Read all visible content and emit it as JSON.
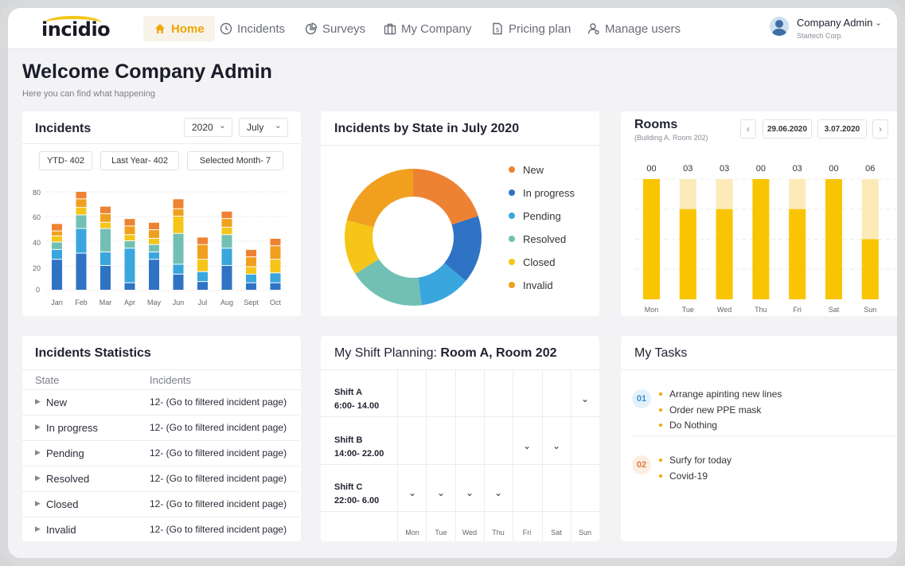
{
  "app": {
    "logo": "incidio",
    "brand_color": "#f5c518"
  },
  "nav": [
    {
      "label": "Home",
      "icon": "home-icon",
      "active": true
    },
    {
      "label": "Incidents",
      "icon": "clock-icon"
    },
    {
      "label": "Surveys",
      "icon": "pie-chart-icon"
    },
    {
      "label": "My Company",
      "icon": "briefcase-icon"
    },
    {
      "label": "Pricing plan",
      "icon": "document-dollar-icon"
    },
    {
      "label": "Manage users",
      "icon": "user-gear-icon"
    }
  ],
  "user": {
    "name": "Company Admin",
    "company": "Startech Corp."
  },
  "welcome": {
    "title": "Welcome Company Admin",
    "subtitle": "Here you can find what happening"
  },
  "incidents": {
    "title": "Incidents",
    "year": "2020",
    "month": "July",
    "ytd": "YTD- 402",
    "last_year": "Last Year- 402",
    "selected_month": "Selected Month- 7"
  },
  "chart_data": [
    {
      "type": "bar",
      "stacked": true,
      "title": "Incidents",
      "categories": [
        "Jan",
        "Feb",
        "Mar",
        "Apr",
        "May",
        "Jun",
        "Jul",
        "Aug",
        "Sept",
        "Oct"
      ],
      "y_ticks": [
        "80",
        "60",
        "40",
        "20",
        "0"
      ],
      "ylim": [
        0,
        80
      ],
      "series": [
        {
          "name": "In progress",
          "color": "#2f73c4",
          "values": [
            25,
            30,
            20,
            6,
            25,
            13,
            7,
            20,
            6,
            6
          ]
        },
        {
          "name": "Pending",
          "color": "#3aa6de",
          "values": [
            8,
            20,
            11,
            28,
            6,
            8,
            8,
            14,
            7,
            8
          ]
        },
        {
          "name": "Resolved",
          "color": "#72c0b4",
          "values": [
            6,
            11,
            19,
            6,
            6,
            25,
            0,
            11,
            0,
            0
          ]
        },
        {
          "name": "Closed",
          "color": "#f5c518",
          "values": [
            5,
            6,
            5,
            5,
            5,
            14,
            10,
            6,
            6,
            11
          ]
        },
        {
          "name": "Invalid",
          "color": "#f0a01e",
          "values": [
            4,
            7,
            7,
            7,
            7,
            6,
            12,
            7,
            8,
            11
          ]
        },
        {
          "name": "New",
          "color": "#ee8233",
          "values": [
            6,
            6,
            6,
            6,
            6,
            8,
            6,
            6,
            6,
            6
          ]
        }
      ]
    },
    {
      "type": "pie",
      "donut": true,
      "title": "Incidents by State in July 2020",
      "categories": [
        "New",
        "In progress",
        "Pending",
        "Resolved",
        "Closed",
        "Invalid"
      ],
      "values": [
        20,
        16,
        12,
        18,
        13,
        21
      ],
      "colors": [
        "#ee8233",
        "#2f73c4",
        "#3aa6de",
        "#72c0b4",
        "#f5c518",
        "#f0a01e"
      ]
    },
    {
      "type": "bar",
      "title": "Rooms",
      "subtitle": "(Building A. Room 202)",
      "categories": [
        "Mon",
        "Tue",
        "Wed",
        "Thu",
        "Fri",
        "Sat",
        "Sun"
      ],
      "values": [
        "00",
        "03",
        "03",
        "00",
        "03",
        "00",
        "06"
      ],
      "fill_fraction": [
        1.0,
        0.75,
        0.75,
        1.0,
        0.75,
        1.0,
        0.5
      ],
      "colors": {
        "fill": "#f9c401",
        "track": "#fcebb8"
      }
    }
  ],
  "rooms": {
    "title": "Rooms",
    "subtitle": "(Building A. Room 202)",
    "date_from": "29.06.2020",
    "date_to": "3.07.2020"
  },
  "stats": {
    "title": "Incidents Statistics",
    "col_state": "State",
    "col_incidents": "Incidents",
    "rows": [
      {
        "state": "New",
        "value": "12- (Go to filtered incident page)"
      },
      {
        "state": "In progress",
        "value": "12- (Go to filtered incident page)"
      },
      {
        "state": "Pending",
        "value": "12- (Go to filtered incident page)"
      },
      {
        "state": "Resolved",
        "value": "12- (Go to filtered incident page)"
      },
      {
        "state": "Closed",
        "value": "12- (Go to filtered incident page)"
      },
      {
        "state": "Invalid",
        "value": "12- (Go to filtered incident page)"
      }
    ]
  },
  "shift": {
    "title_prefix": "My Shift Planning: ",
    "title_rooms": "Room A, Room 202",
    "shifts": [
      {
        "name": "Shift A",
        "time": "6:00- 14.00",
        "days": [
          7
        ]
      },
      {
        "name": "Shift B",
        "time": "14:00- 22.00",
        "days": [
          5,
          6
        ]
      },
      {
        "name": "Shift C",
        "time": "22:00- 6.00",
        "days": [
          1,
          2,
          3,
          4
        ]
      }
    ],
    "days": [
      "Mon",
      "Tue",
      "Wed",
      "Thu",
      "Fri",
      "Sat",
      "Sun"
    ]
  },
  "tasks": {
    "title": "My Tasks",
    "groups": [
      {
        "badge": "01",
        "items": [
          "Arrange apinting new lines",
          "Order new PPE mask",
          "Do Nothing"
        ]
      },
      {
        "badge": "02",
        "items": [
          "Surfy for today",
          "Covid-19"
        ]
      }
    ]
  }
}
